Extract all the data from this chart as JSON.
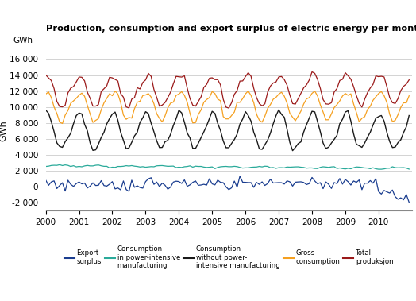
{
  "title": "Production, consumption and export surplus of electric energy per month. GWh",
  "ylabel": "GWh",
  "ylim": [
    -3000,
    17000
  ],
  "yticks": [
    -2000,
    0,
    2000,
    4000,
    6000,
    8000,
    10000,
    12000,
    14000,
    16000
  ],
  "xlim": [
    2000,
    2011
  ],
  "xticks": [
    2000,
    2001,
    2002,
    2003,
    2004,
    2005,
    2006,
    2007,
    2008,
    2009,
    2010
  ],
  "legend_labels": [
    "Export\nsurplus",
    "Consumption\nin power-intensive\nmanufacturing",
    "Consumption\nwithout power-\nintensive manufacturing",
    "Gross\nconsumption",
    "Total\nproduksjon"
  ],
  "legend_colors": [
    "#1a3d8f",
    "#2aaa9a",
    "#1a1a1a",
    "#f5a020",
    "#9b1a1a"
  ],
  "background_color": "#ffffff",
  "grid_color": "#cccccc"
}
